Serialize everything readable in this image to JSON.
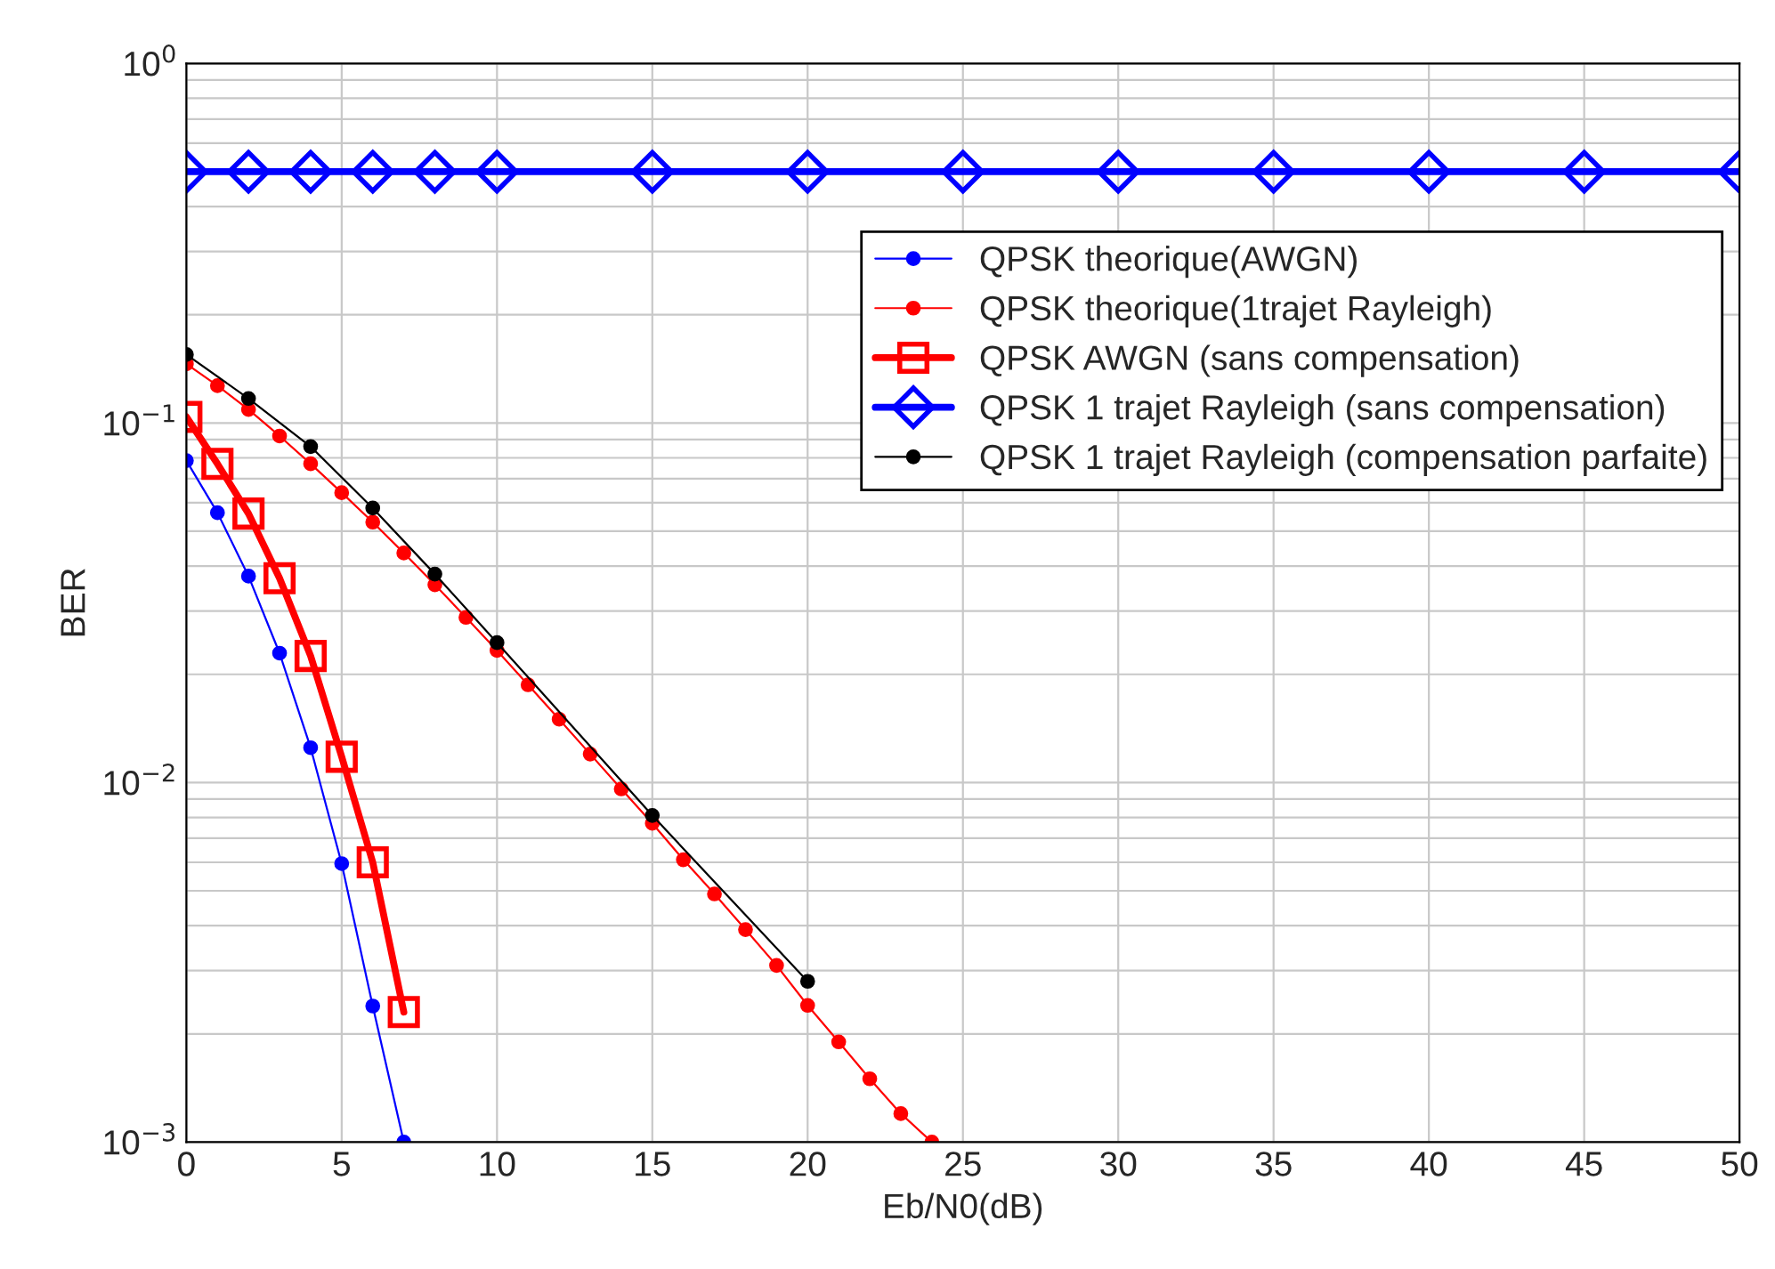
{
  "chart_data": {
    "type": "line",
    "xlabel": "Eb/N0(dB)",
    "ylabel": "BER",
    "log": "y",
    "grid": true,
    "legend": "top right",
    "xlim": [
      0,
      50
    ],
    "xticks": [
      0,
      5,
      10,
      15,
      20,
      25,
      30,
      35,
      40,
      45,
      50
    ],
    "ylim": [
      0.001,
      1
    ],
    "yticks": [
      {
        "value": 0.001,
        "label": "10$^{−3}$"
      },
      {
        "value": 0.01,
        "label": "10$^{−2}$"
      },
      {
        "value": 0.1,
        "label": "10$^{−1}$"
      },
      {
        "value": 1,
        "label": "10$^{0}$"
      }
    ],
    "series": [
      {
        "name": "QPSK theorique(AWGN)",
        "color": "#0000ff",
        "marker": "circle",
        "x": [
          0,
          1,
          2,
          3,
          4,
          5,
          6,
          7
        ],
        "values": [
          0.0786,
          0.0563,
          0.0375,
          0.0229,
          0.0125,
          0.00595,
          0.00239,
          0.001
        ]
      },
      {
        "name": "QPSK theorique(1trajet Rayleigh)",
        "color": "#ff0000",
        "marker": "circle",
        "x": [
          0,
          1,
          2,
          3,
          4,
          5,
          6,
          7,
          8,
          9,
          10,
          11,
          12,
          13,
          14,
          15,
          16,
          17,
          18,
          19,
          20,
          21,
          22,
          23,
          24
        ],
        "values": [
          0.146,
          0.127,
          0.109,
          0.092,
          0.077,
          0.064,
          0.053,
          0.0435,
          0.0355,
          0.0288,
          0.0233,
          0.0187,
          0.015,
          0.012,
          0.0096,
          0.0077,
          0.0061,
          0.0049,
          0.0039,
          0.0031,
          0.0024,
          0.0019,
          0.0015,
          0.0012,
          0.001
        ]
      },
      {
        "name": "QPSK AWGN (sans compensation)",
        "color": "#ff0000",
        "marker": "square",
        "x": [
          0,
          1,
          2,
          3,
          4,
          5,
          6,
          7
        ],
        "values": [
          0.104,
          0.077,
          0.056,
          0.037,
          0.0225,
          0.0118,
          0.006,
          0.0023
        ]
      },
      {
        "name": "QPSK 1 trajet Rayleigh (sans compensation)",
        "color": "#0000ff",
        "marker": "diamond",
        "x": [
          0,
          2,
          4,
          6,
          8,
          10,
          15,
          20,
          25,
          30,
          35,
          40,
          45,
          50
        ],
        "values": [
          0.5,
          0.5,
          0.5,
          0.5,
          0.5,
          0.5,
          0.5,
          0.5,
          0.5,
          0.5,
          0.5,
          0.5,
          0.5,
          0.5
        ]
      },
      {
        "name": "QPSK 1 trajet Rayleigh (compensation parfaite)",
        "color": "#000000",
        "marker": "circle",
        "x": [
          0,
          2,
          4,
          6,
          8,
          10,
          15,
          20
        ],
        "values": [
          0.155,
          0.117,
          0.086,
          0.058,
          0.038,
          0.0245,
          0.0081,
          0.0028
        ]
      }
    ]
  }
}
